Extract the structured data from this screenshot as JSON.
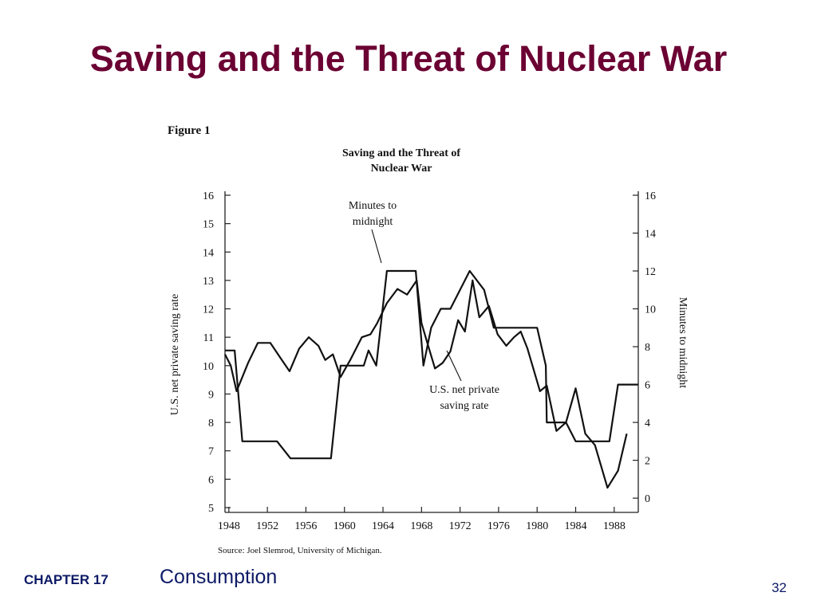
{
  "slide": {
    "title": "Saving and the Threat of Nuclear War",
    "chapter_label": "CHAPTER 17",
    "chapter_topic": "Consumption",
    "page_number": "32"
  },
  "chart_data": {
    "type": "line",
    "figure_label": "Figure 1",
    "title_line1": "Saving and the Threat of",
    "title_line2": "Nuclear War",
    "ylabel_left": "U.S. net private saving rate",
    "ylabel_right": "Minutes to midnight",
    "source": "Source: Joel Slemrod, University of Michigan.",
    "x_ticks": [
      "1948",
      "1952",
      "1956",
      "1960",
      "1964",
      "1968",
      "1972",
      "1976",
      "1980",
      "1984",
      "1988"
    ],
    "x_range": [
      1947.6,
      1990.5
    ],
    "left_axis": {
      "range": [
        5,
        16
      ],
      "ticks": [
        "5",
        "6",
        "7",
        "8",
        "9",
        "10",
        "11",
        "12",
        "13",
        "14",
        "15",
        "16"
      ]
    },
    "right_axis": {
      "range": [
        -0.5,
        16
      ],
      "ticks": [
        "0",
        "2",
        "4",
        "6",
        "8",
        "10",
        "12",
        "14",
        "16"
      ]
    },
    "annotations": {
      "minutes_line1": "Minutes to",
      "minutes_line2": "midnight",
      "saving_line1": "U.S. net private",
      "saving_line2": "saving rate"
    },
    "series": [
      {
        "name": "Minutes to midnight",
        "axis": "right",
        "points": [
          [
            1947.6,
            7.8
          ],
          [
            1948.6,
            7.8
          ],
          [
            1949.4,
            3.0
          ],
          [
            1953.0,
            3.0
          ],
          [
            1954.4,
            2.1
          ],
          [
            1958.6,
            2.1
          ],
          [
            1959.6,
            7.0
          ],
          [
            1962.0,
            7.0
          ],
          [
            1962.5,
            7.8
          ],
          [
            1963.3,
            7.0
          ],
          [
            1964.4,
            12.0
          ],
          [
            1967.4,
            12.0
          ],
          [
            1968.2,
            7.0
          ],
          [
            1969.0,
            9.0
          ],
          [
            1970.0,
            10.0
          ],
          [
            1971.0,
            10.0
          ],
          [
            1973.0,
            12.0
          ],
          [
            1974.5,
            11.0
          ],
          [
            1975.5,
            9.0
          ],
          [
            1980.0,
            9.0
          ],
          [
            1980.9,
            7.0
          ],
          [
            1981.0,
            4.0
          ],
          [
            1983.0,
            4.0
          ],
          [
            1984.0,
            3.0
          ],
          [
            1987.5,
            3.0
          ],
          [
            1988.4,
            6.0
          ],
          [
            1990.5,
            6.0
          ]
        ]
      },
      {
        "name": "U.S. net private saving rate",
        "axis": "left",
        "points": [
          [
            1947.6,
            10.4
          ],
          [
            1948.2,
            10.0
          ],
          [
            1948.8,
            9.1
          ],
          [
            1950.0,
            10.1
          ],
          [
            1951.0,
            10.8
          ],
          [
            1952.3,
            10.8
          ],
          [
            1953.3,
            10.3
          ],
          [
            1954.3,
            9.8
          ],
          [
            1955.3,
            10.6
          ],
          [
            1956.3,
            11.0
          ],
          [
            1957.3,
            10.7
          ],
          [
            1958.0,
            10.2
          ],
          [
            1958.8,
            10.4
          ],
          [
            1959.6,
            9.6
          ],
          [
            1960.6,
            10.2
          ],
          [
            1961.8,
            11.0
          ],
          [
            1962.7,
            11.1
          ],
          [
            1963.4,
            11.5
          ],
          [
            1964.4,
            12.2
          ],
          [
            1965.5,
            12.7
          ],
          [
            1966.5,
            12.5
          ],
          [
            1967.5,
            13.0
          ],
          [
            1968.0,
            11.5
          ],
          [
            1968.6,
            10.8
          ],
          [
            1969.4,
            9.9
          ],
          [
            1970.2,
            10.1
          ],
          [
            1971.0,
            10.5
          ],
          [
            1971.8,
            11.6
          ],
          [
            1972.5,
            11.2
          ],
          [
            1973.3,
            13.0
          ],
          [
            1974.0,
            11.7
          ],
          [
            1975.0,
            12.1
          ],
          [
            1975.9,
            11.1
          ],
          [
            1976.8,
            10.7
          ],
          [
            1977.6,
            11.0
          ],
          [
            1978.3,
            11.2
          ],
          [
            1979.0,
            10.6
          ],
          [
            1980.3,
            9.1
          ],
          [
            1981.0,
            9.3
          ],
          [
            1982.0,
            7.7
          ],
          [
            1983.0,
            8.0
          ],
          [
            1984.0,
            9.2
          ],
          [
            1985.0,
            7.6
          ],
          [
            1986.0,
            7.2
          ],
          [
            1987.3,
            5.7
          ],
          [
            1988.4,
            6.3
          ],
          [
            1989.3,
            7.6
          ]
        ]
      }
    ]
  }
}
